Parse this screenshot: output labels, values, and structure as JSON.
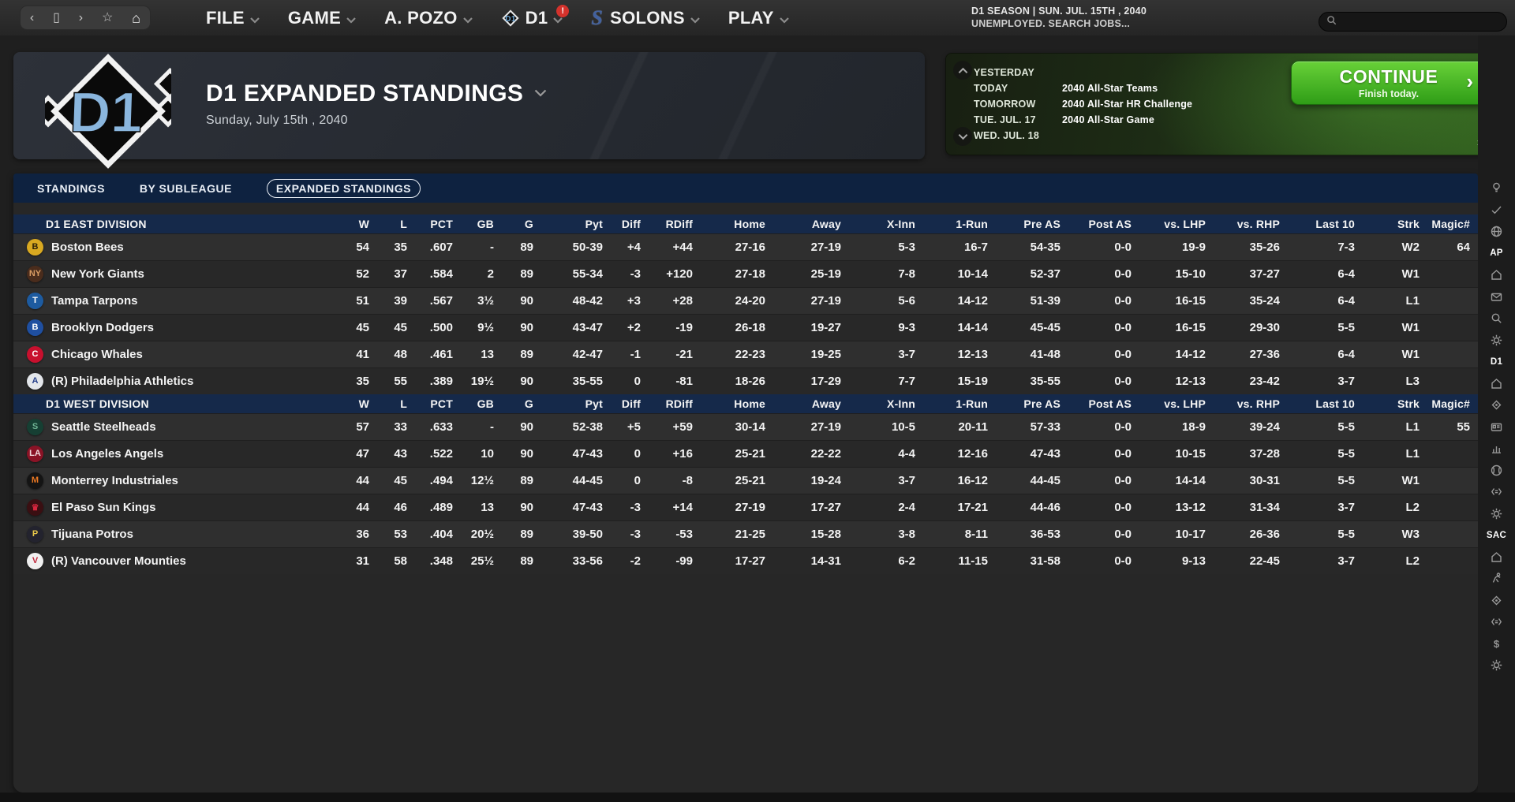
{
  "topnav": {
    "window_controls": [
      {
        "name": "back-button",
        "glyph": "‹"
      },
      {
        "name": "window-button",
        "glyph": "▯"
      },
      {
        "name": "forward-button",
        "glyph": "›"
      },
      {
        "name": "favorite-button",
        "glyph": "☆"
      },
      {
        "name": "home-button",
        "glyph": "⌂"
      }
    ],
    "menus": [
      {
        "id": "file",
        "label": "FILE"
      },
      {
        "id": "game",
        "label": "GAME"
      },
      {
        "id": "manager",
        "label": "A. POZO"
      },
      {
        "id": "d1",
        "label": "D1",
        "icon": "d1-diamond",
        "alert": "!"
      },
      {
        "id": "solons",
        "label": "SOLONS",
        "icon": "solons-s"
      },
      {
        "id": "play",
        "label": "PLAY"
      }
    ],
    "status_line1": "D1 SEASON  |  SUN. JUL. 15TH , 2040",
    "status_line2": "UNEMPLOYED. SEARCH JOBS...",
    "search_placeholder": ""
  },
  "header": {
    "logo_text": "D1",
    "title": "D1 EXPANDED STANDINGS",
    "date": "Sunday, July 15th , 2040"
  },
  "schedule": {
    "rows": [
      {
        "label": "YESTERDAY",
        "event": ""
      },
      {
        "label": "TODAY",
        "event": "2040 All-Star Teams"
      },
      {
        "label": "TOMORROW",
        "event": "2040 All-Star HR Challenge"
      },
      {
        "label": "TUE. JUL. 17",
        "event": "2040 All-Star Game"
      },
      {
        "label": "WED. JUL. 18",
        "event": ""
      }
    ],
    "continue_label": "CONTINUE",
    "continue_sub": "Finish today.",
    "more_glyph": "»"
  },
  "tabs": [
    {
      "label": "STANDINGS",
      "active": false
    },
    {
      "label": "BY SUBLEAGUE",
      "active": false
    },
    {
      "label": "EXPANDED STANDINGS",
      "active": true
    }
  ],
  "standings": {
    "columns": [
      "W",
      "L",
      "PCT",
      "GB",
      "G",
      "Pyt",
      "Diff",
      "RDiff",
      "Home",
      "Away",
      "X-Inn",
      "1-Run",
      "Pre AS",
      "Post AS",
      "vs. LHP",
      "vs. RHP",
      "Last 10",
      "Strk",
      "Magic#"
    ],
    "divisions": [
      {
        "name": "D1 EAST DIVISION",
        "teams": [
          {
            "name": "Boston Bees",
            "logo": "B",
            "logo_bg": "#d9a921",
            "logo_fg": "#2a1f07",
            "cells": [
              "54",
              "35",
              ".607",
              "-",
              "89",
              "50-39",
              "+4",
              "+44",
              "27-16",
              "27-19",
              "5-3",
              "16-7",
              "54-35",
              "0-0",
              "19-9",
              "35-26",
              "7-3",
              "W2",
              "64"
            ]
          },
          {
            "name": "New York Giants",
            "logo": "NY",
            "logo_bg": "#4a2c1c",
            "logo_fg": "#d79a62",
            "cells": [
              "52",
              "37",
              ".584",
              "2",
              "89",
              "55-34",
              "-3",
              "+120",
              "27-18",
              "25-19",
              "7-8",
              "10-14",
              "52-37",
              "0-0",
              "15-10",
              "37-27",
              "6-4",
              "W1",
              ""
            ]
          },
          {
            "name": "Tampa Tarpons",
            "logo": "T",
            "logo_bg": "#1d5ba0",
            "logo_fg": "#ffffff",
            "cells": [
              "51",
              "39",
              ".567",
              "3½",
              "90",
              "48-42",
              "+3",
              "+28",
              "24-20",
              "27-19",
              "5-6",
              "14-12",
              "51-39",
              "0-0",
              "16-15",
              "35-24",
              "6-4",
              "L1",
              ""
            ]
          },
          {
            "name": "Brooklyn Dodgers",
            "logo": "B",
            "logo_bg": "#1f4fa0",
            "logo_fg": "#ffffff",
            "cells": [
              "45",
              "45",
              ".500",
              "9½",
              "90",
              "43-47",
              "+2",
              "-19",
              "26-18",
              "19-27",
              "9-3",
              "14-14",
              "45-45",
              "0-0",
              "16-15",
              "29-30",
              "5-5",
              "W1",
              ""
            ]
          },
          {
            "name": "Chicago Whales",
            "logo": "C",
            "logo_bg": "#c8102e",
            "logo_fg": "#ffffff",
            "cells": [
              "41",
              "48",
              ".461",
              "13",
              "89",
              "42-47",
              "-1",
              "-21",
              "22-23",
              "19-25",
              "3-7",
              "12-13",
              "41-48",
              "0-0",
              "14-12",
              "27-36",
              "6-4",
              "W1",
              ""
            ]
          },
          {
            "name": "(R) Philadelphia Athletics",
            "logo": "A",
            "logo_bg": "#e3e6ea",
            "logo_fg": "#27408b",
            "cells": [
              "35",
              "55",
              ".389",
              "19½",
              "90",
              "35-55",
              "0",
              "-81",
              "18-26",
              "17-29",
              "7-7",
              "15-19",
              "35-55",
              "0-0",
              "12-13",
              "23-42",
              "3-7",
              "L3",
              ""
            ]
          }
        ]
      },
      {
        "name": "D1 WEST DIVISION",
        "teams": [
          {
            "name": "Seattle Steelheads",
            "logo": "S",
            "logo_bg": "#163f33",
            "logo_fg": "#6fb394",
            "cells": [
              "57",
              "33",
              ".633",
              "-",
              "90",
              "52-38",
              "+5",
              "+59",
              "30-14",
              "27-19",
              "10-5",
              "20-11",
              "57-33",
              "0-0",
              "18-9",
              "39-24",
              "5-5",
              "L1",
              "55"
            ]
          },
          {
            "name": "Los Angeles Angels",
            "logo": "LA",
            "logo_bg": "#8a1326",
            "logo_fg": "#f0d9dc",
            "cells": [
              "47",
              "43",
              ".522",
              "10",
              "90",
              "47-43",
              "0",
              "+16",
              "25-21",
              "22-22",
              "4-4",
              "12-16",
              "47-43",
              "0-0",
              "10-15",
              "37-28",
              "5-5",
              "L1",
              ""
            ]
          },
          {
            "name": "Monterrey Industriales",
            "logo": "M",
            "logo_bg": "#141414",
            "logo_fg": "#e87722",
            "cells": [
              "44",
              "45",
              ".494",
              "12½",
              "89",
              "44-45",
              "0",
              "-8",
              "25-21",
              "19-24",
              "3-7",
              "16-12",
              "44-45",
              "0-0",
              "14-14",
              "30-31",
              "5-5",
              "W1",
              ""
            ]
          },
          {
            "name": "El Paso Sun Kings",
            "logo": "♛",
            "logo_bg": "#3a0f12",
            "logo_fg": "#d6263e",
            "cells": [
              "44",
              "46",
              ".489",
              "13",
              "90",
              "47-43",
              "-3",
              "+14",
              "27-19",
              "17-27",
              "2-4",
              "17-21",
              "44-46",
              "0-0",
              "13-12",
              "31-34",
              "3-7",
              "L2",
              ""
            ]
          },
          {
            "name": "Tijuana Potros",
            "logo": "P",
            "logo_bg": "#23232e",
            "logo_fg": "#e8c84a",
            "cells": [
              "36",
              "53",
              ".404",
              "20½",
              "89",
              "39-50",
              "-3",
              "-53",
              "21-25",
              "15-28",
              "3-8",
              "8-11",
              "36-53",
              "0-0",
              "10-17",
              "26-36",
              "5-5",
              "W3",
              ""
            ]
          },
          {
            "name": "(R) Vancouver Mounties",
            "logo": "V",
            "logo_bg": "#f0f0f0",
            "logo_fg": "#c0283c",
            "cells": [
              "31",
              "58",
              ".348",
              "25½",
              "89",
              "33-56",
              "-2",
              "-99",
              "17-27",
              "14-31",
              "6-2",
              "11-15",
              "31-58",
              "0-0",
              "9-13",
              "22-45",
              "3-7",
              "L2",
              ""
            ]
          }
        ]
      }
    ]
  },
  "sidebar": {
    "items": [
      {
        "type": "icon",
        "name": "lightbulb"
      },
      {
        "type": "icon",
        "name": "check"
      },
      {
        "type": "icon",
        "name": "globe"
      },
      {
        "type": "label",
        "text": "AP"
      },
      {
        "type": "icon",
        "name": "home"
      },
      {
        "type": "icon",
        "name": "mail"
      },
      {
        "type": "icon",
        "name": "search"
      },
      {
        "type": "icon",
        "name": "gear"
      },
      {
        "type": "label",
        "text": "D1"
      },
      {
        "type": "icon",
        "name": "home"
      },
      {
        "type": "icon",
        "name": "target"
      },
      {
        "type": "icon",
        "name": "card"
      },
      {
        "type": "icon",
        "name": "chart"
      },
      {
        "type": "icon",
        "name": "baseball"
      },
      {
        "type": "icon",
        "name": "code"
      },
      {
        "type": "icon",
        "name": "gear"
      },
      {
        "type": "label",
        "text": "SAC"
      },
      {
        "type": "icon",
        "name": "home"
      },
      {
        "type": "icon",
        "name": "pitcher"
      },
      {
        "type": "icon",
        "name": "target"
      },
      {
        "type": "icon",
        "name": "code"
      },
      {
        "type": "icon",
        "name": "dollar"
      },
      {
        "type": "icon",
        "name": "gear"
      }
    ]
  },
  "colors": {
    "positive": "#5bc15f",
    "negative": "#d9655c",
    "accent_green": "#3fae2a",
    "division_header_bg": "#15294a",
    "tab_bar_bg": "#0e2240",
    "row_odd": "#2f2f2f",
    "row_even": "#282828"
  }
}
